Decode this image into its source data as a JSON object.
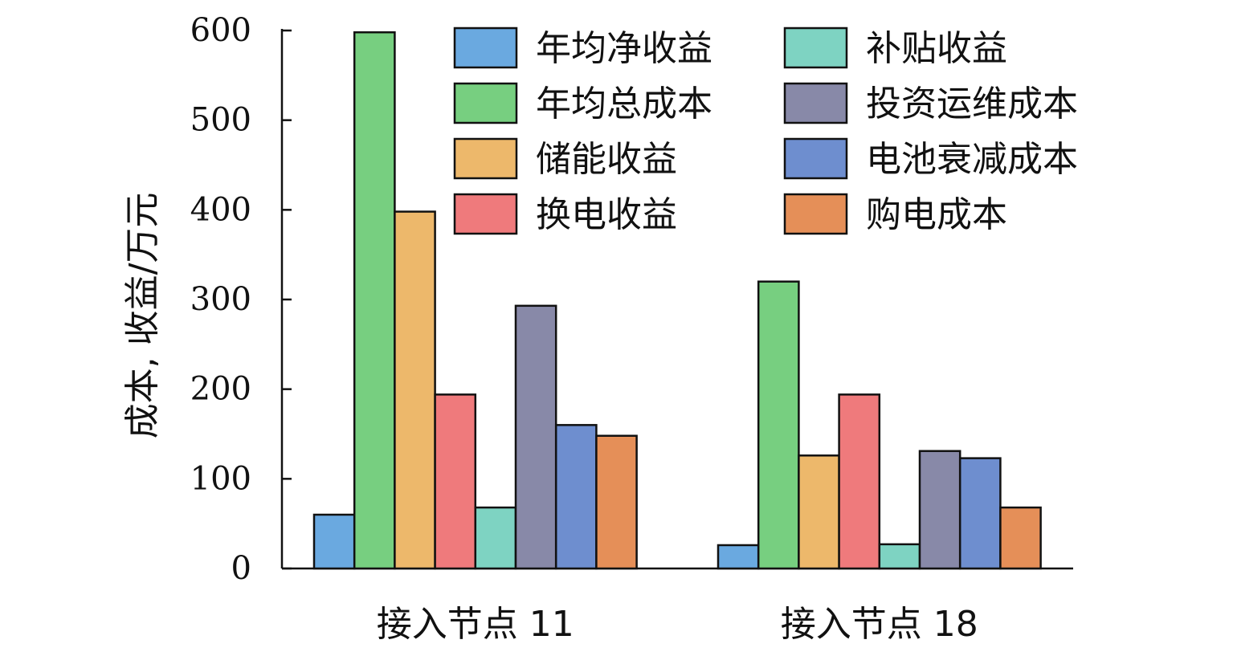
{
  "chart_data": {
    "type": "bar",
    "title": "",
    "xlabel": "",
    "ylabel": "成本, 收益/万元",
    "ylim": [
      0,
      600
    ],
    "yticks": [
      0,
      100,
      200,
      300,
      400,
      500,
      600
    ],
    "categories": [
      "接入节点 11",
      "接入节点 18"
    ],
    "legend_position": "top-right",
    "grid": false,
    "series": [
      {
        "name": "年均净收益",
        "color": "#6aa9e0",
        "values": [
          60,
          26
        ]
      },
      {
        "name": "年均总成本",
        "color": "#77cf80",
        "values": [
          598,
          320
        ]
      },
      {
        "name": "储能收益",
        "color": "#edb86b",
        "values": [
          398,
          126
        ]
      },
      {
        "name": "换电收益",
        "color": "#ef7a7c",
        "values": [
          194,
          194
        ]
      },
      {
        "name": "补贴收益",
        "color": "#7ed3c2",
        "values": [
          68,
          27
        ]
      },
      {
        "name": "投资运维成本",
        "color": "#8889a8",
        "values": [
          293,
          131
        ]
      },
      {
        "name": "电池衰减成本",
        "color": "#6e8ecf",
        "values": [
          160,
          123
        ]
      },
      {
        "name": "购电成本",
        "color": "#e58f58",
        "values": [
          148,
          68
        ]
      }
    ]
  }
}
